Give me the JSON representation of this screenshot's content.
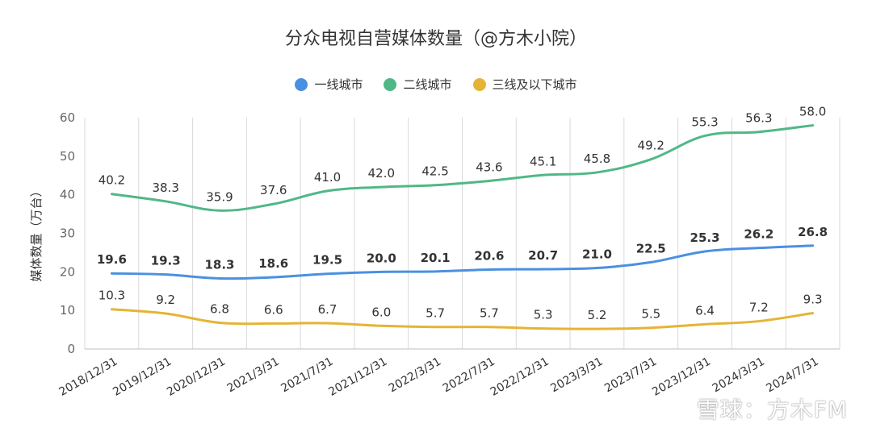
{
  "title": "分众电视自营媒体数量（@方木小院）",
  "watermark": "雪球：方木FM",
  "chart_data": {
    "type": "line",
    "title": "分众电视自营媒体数量（@方木小院）",
    "ylabel": "媒体数量（万台）",
    "xlabel": "",
    "ylim": [
      0,
      60
    ],
    "yticks": [
      "0",
      "10",
      "20",
      "30",
      "40",
      "50",
      "60"
    ],
    "grid": "vertical",
    "legend": "top-center",
    "categories": [
      "2018/12/31",
      "2019/12/31",
      "2020/12/31",
      "2021/3/31",
      "2021/7/31",
      "2021/12/31",
      "2022/3/31",
      "2022/7/31",
      "2022/12/31",
      "2023/3/31",
      "2023/7/31",
      "2023/12/31",
      "2024/3/31",
      "2024/7/31"
    ],
    "series": [
      {
        "name": "一线城市",
        "color": "#4a90e2",
        "bold_labels": true,
        "values": [
          19.6,
          19.3,
          18.3,
          18.6,
          19.5,
          20.0,
          20.1,
          20.6,
          20.7,
          21.0,
          22.5,
          25.3,
          26.2,
          26.8
        ],
        "labels": [
          "19.6",
          "19.3",
          "18.3",
          "18.6",
          "19.5",
          "20.0",
          "20.1",
          "20.6",
          "20.7",
          "21.0",
          "22.5",
          "25.3",
          "26.2",
          "26.8"
        ]
      },
      {
        "name": "二线城市",
        "color": "#50b885",
        "bold_labels": false,
        "values": [
          40.2,
          38.3,
          35.9,
          37.6,
          41.0,
          42.0,
          42.5,
          43.6,
          45.1,
          45.8,
          49.2,
          55.3,
          56.3,
          58.0
        ],
        "labels": [
          "40.2",
          "38.3",
          "35.9",
          "37.6",
          "41.0",
          "42.0",
          "42.5",
          "43.6",
          "45.1",
          "45.8",
          "49.2",
          "55.3",
          "56.3",
          "58.0"
        ]
      },
      {
        "name": "三线及以下城市",
        "color": "#e5b435",
        "bold_labels": false,
        "values": [
          10.3,
          9.2,
          6.8,
          6.6,
          6.7,
          6.0,
          5.7,
          5.7,
          5.3,
          5.2,
          5.5,
          6.4,
          7.2,
          9.3
        ],
        "labels": [
          "10.3",
          "9.2",
          "6.8",
          "6.6",
          "6.7",
          "6.0",
          "5.7",
          "5.7",
          "5.3",
          "5.2",
          "5.5",
          "6.4",
          "7.2",
          "9.3"
        ]
      }
    ]
  }
}
